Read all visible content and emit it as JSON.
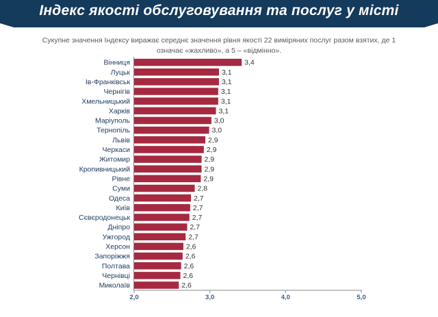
{
  "banner": {
    "title": "Індекс якості обслуговування та послуг у місті"
  },
  "subtitle_lines": [
    "Сукупне значення Індексу виражає середнє значення рівня якості 22 виміряних послуг разом взятих, де 1",
    "означає «жахливо», а 5 – «відмінно»."
  ],
  "colors": {
    "banner": "#143a5c",
    "bar": "#a52a41",
    "axis": "#8a8a8a",
    "tick_label": "#3a5d8a",
    "label": "#1f3a5f"
  },
  "chart_data": {
    "type": "bar",
    "orientation": "horizontal",
    "categories": [
      "Вінниця",
      "Луцьк",
      "Ів-Франківськ",
      "Чернігів",
      "Хмельницький",
      "Харків",
      "Маріуполь",
      "Тернопіль",
      "Львів",
      "Черкаси",
      "Житомир",
      "Кропивницький",
      "Рівне",
      "Суми",
      "Одеса",
      "Київ",
      "Сєвєродонецьк",
      "Дніпро",
      "Ужгород",
      "Херсон",
      "Запоріжжя",
      "Полтава",
      "Чернівці",
      "Миколаїв"
    ],
    "values": [
      3.42,
      3.12,
      3.12,
      3.11,
      3.11,
      3.08,
      3.02,
      2.99,
      2.94,
      2.92,
      2.89,
      2.89,
      2.88,
      2.8,
      2.75,
      2.74,
      2.73,
      2.7,
      2.68,
      2.65,
      2.64,
      2.62,
      2.61,
      2.59
    ],
    "value_labels": [
      "3,4",
      "3,1",
      "3,1",
      "3,1",
      "3,1",
      "3,1",
      "3,0",
      "3,0",
      "2,9",
      "2,9",
      "2,9",
      "2,9",
      "2,9",
      "2,8",
      "2,7",
      "2,7",
      "2,7",
      "2,7",
      "2,7",
      "2,6",
      "2,6",
      "2,6",
      "2,6",
      "2,6"
    ],
    "x_ticks": [
      "2,0",
      "3,0",
      "4,0",
      "5,0"
    ],
    "x_tick_values": [
      2,
      3,
      4,
      5
    ],
    "xlim": [
      2,
      5
    ],
    "grid": false,
    "legend": "none"
  }
}
